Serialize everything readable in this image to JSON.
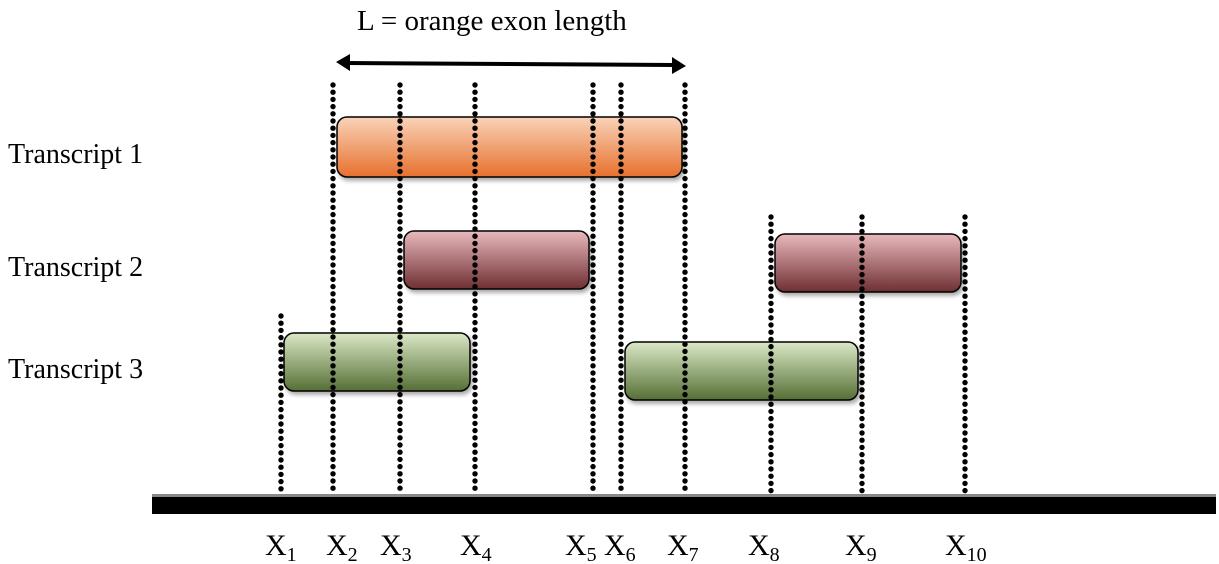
{
  "title": "L = orange exon length",
  "tracks": [
    {
      "label": "Transcript 1"
    },
    {
      "label": "Transcript 2"
    },
    {
      "label": "Transcript 3"
    }
  ],
  "positions": [
    {
      "base": "X",
      "sub": "1"
    },
    {
      "base": "X",
      "sub": "2"
    },
    {
      "base": "X",
      "sub": "3"
    },
    {
      "base": "X",
      "sub": "4"
    },
    {
      "base": "X",
      "sub": "5"
    },
    {
      "base": "X",
      "sub": "6"
    },
    {
      "base": "X",
      "sub": "7"
    },
    {
      "base": "X",
      "sub": "8"
    },
    {
      "base": "X",
      "sub": "9"
    },
    {
      "base": "X",
      "sub": "10"
    }
  ],
  "exons": [
    {
      "track": 1,
      "start": "X2",
      "end": "X7",
      "color": "orange"
    },
    {
      "track": 2,
      "start": "X3",
      "end": "X5",
      "color": "maroon"
    },
    {
      "track": 2,
      "start": "X8",
      "end": "X10",
      "color": "maroon"
    },
    {
      "track": 3,
      "start": "X1",
      "end": "X4",
      "color": "olive-green"
    },
    {
      "track": 3,
      "start": "X6",
      "end": "X9",
      "color": "olive-green"
    }
  ],
  "length_arrow": {
    "from": "X2",
    "to": "X7"
  },
  "colors": {
    "orange_top": "#f9d3b8",
    "orange_bottom": "#e7702d",
    "maroon_top": "#e9b9bd",
    "maroon_bottom": "#6e2f32",
    "green_top": "#dbe8c6",
    "green_bottom": "#556f35",
    "genome_line": "#000000",
    "dots": "#000000"
  }
}
